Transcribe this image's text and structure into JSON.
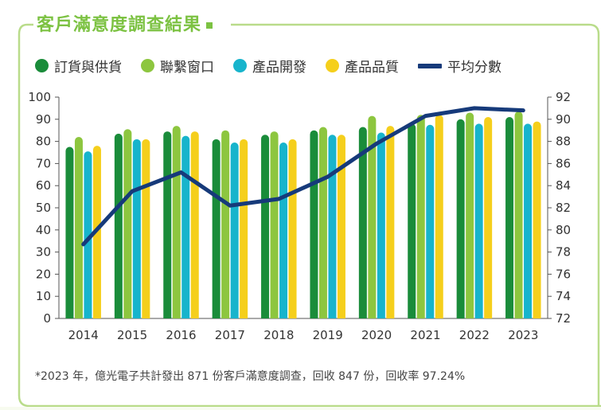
{
  "header": {
    "title": "客戶滿意度調查結果"
  },
  "chart_data": {
    "type": "bar",
    "categories": [
      "2014",
      "2015",
      "2016",
      "2017",
      "2018",
      "2019",
      "2020",
      "2021",
      "2022",
      "2023"
    ],
    "series": [
      {
        "name": "訂貨與供貨",
        "axis": "left",
        "color": "#1a8c3a",
        "values": [
          77.5,
          83.5,
          84.5,
          81,
          83,
          85,
          86.5,
          88,
          90,
          91
        ]
      },
      {
        "name": "聯繫窗口",
        "axis": "left",
        "color": "#8dc63f",
        "values": [
          82,
          85.5,
          87,
          85,
          84.5,
          86.5,
          91.5,
          92,
          93,
          93.5
        ]
      },
      {
        "name": "產品開發",
        "axis": "left",
        "color": "#17b4cc",
        "values": [
          75.5,
          81,
          82.5,
          79.5,
          79.5,
          83,
          84,
          87.5,
          88,
          88
        ]
      },
      {
        "name": "產品品質",
        "axis": "left",
        "color": "#f5cf1c",
        "values": [
          78,
          81,
          84.5,
          81,
          81,
          83,
          87,
          92,
          91,
          89
        ]
      }
    ],
    "line_series": {
      "name": "平均分數",
      "axis": "right",
      "color": "#163a7a",
      "values": [
        78.7,
        83.5,
        85.2,
        82.2,
        82.8,
        84.8,
        87.8,
        90.3,
        91,
        90.8
      ]
    },
    "ylim": [
      0,
      100
    ],
    "y_ticks": [
      "0",
      "10",
      "20",
      "30",
      "40",
      "50",
      "60",
      "70",
      "80",
      "90",
      "100"
    ],
    "y2lim": [
      72,
      92
    ],
    "y2_ticks": [
      "72",
      "74",
      "76",
      "78",
      "80",
      "82",
      "84",
      "86",
      "88",
      "90",
      "92"
    ],
    "legend_position": "top",
    "grid": false
  },
  "footnote": "*2023 年，億光電子共計發出 871 份客戶滿意度調查，回收 847 份，回收率 97.24%",
  "colors": {
    "accent": "#7cc242",
    "frame": "#b9dc8a"
  }
}
